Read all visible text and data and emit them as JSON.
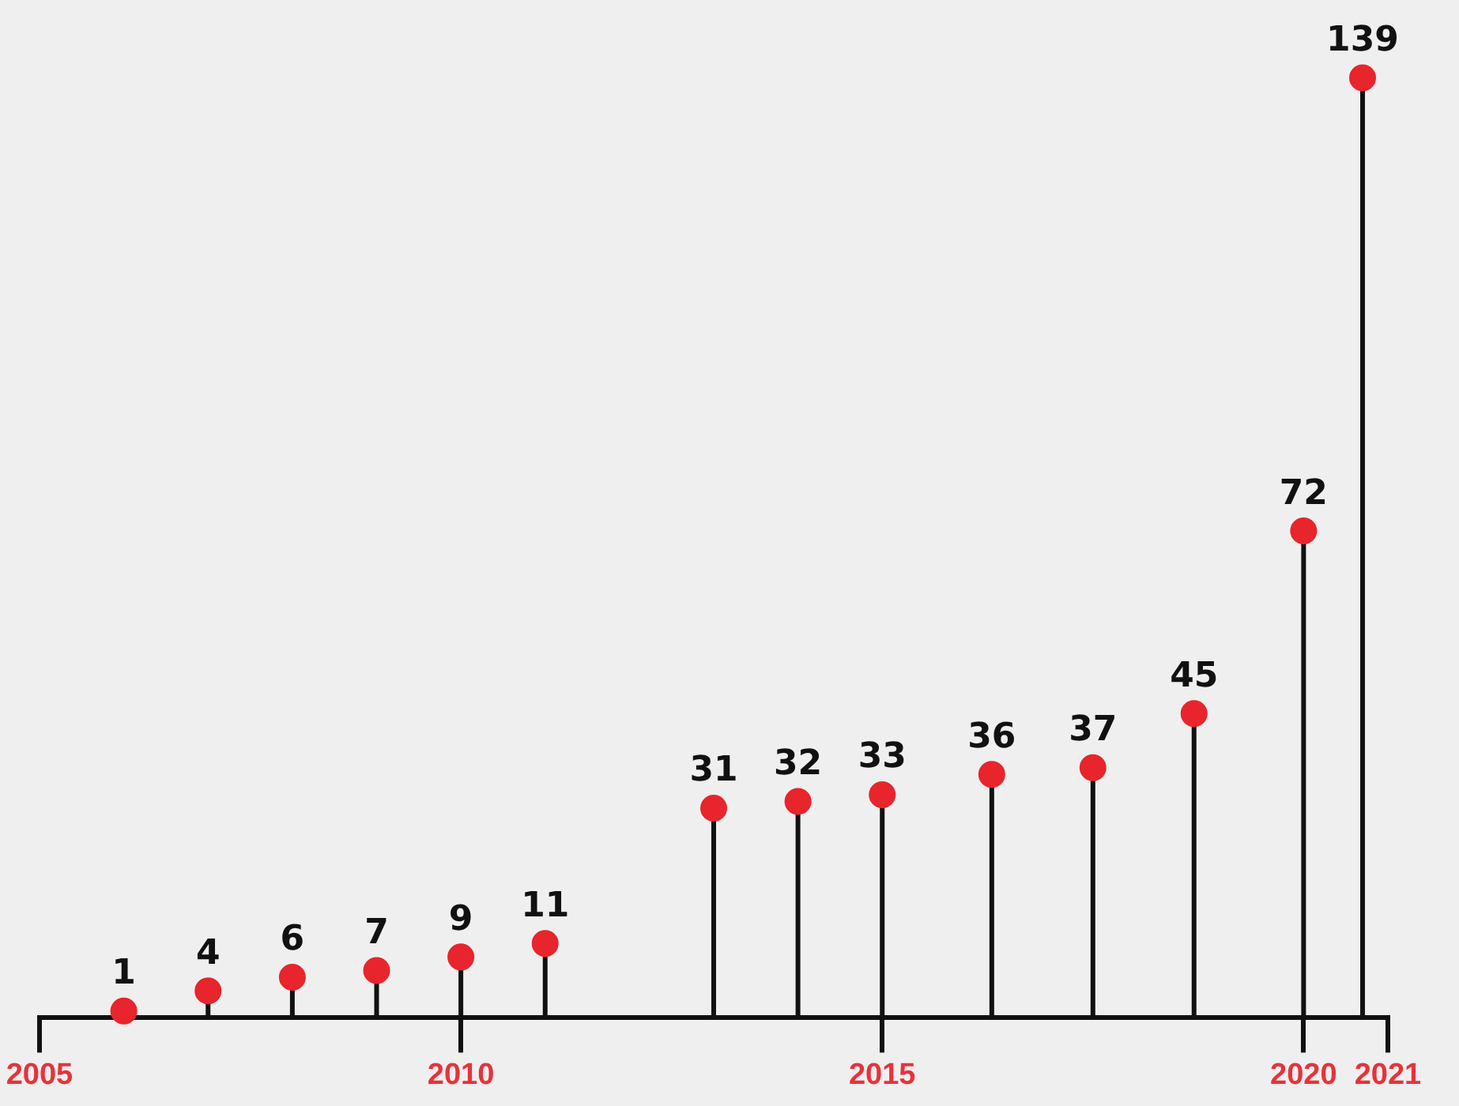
{
  "chart_data": {
    "type": "lollipop",
    "x": [
      2006,
      2007,
      2008,
      2009,
      2010,
      2011,
      2013,
      2014,
      2015,
      2016.3,
      2017.5,
      2018.7,
      2020,
      2020.7
    ],
    "values": [
      1,
      4,
      6,
      7,
      9,
      11,
      31,
      32,
      33,
      36,
      37,
      45,
      72,
      139
    ],
    "color": "#e8252c",
    "xlim": [
      2005,
      2021
    ],
    "xticks": [
      2005,
      2010,
      2015,
      2020,
      2021
    ],
    "data_labels": true,
    "grid": false,
    "legend": false,
    "marker": "circle",
    "tick_labels": "x"
  }
}
